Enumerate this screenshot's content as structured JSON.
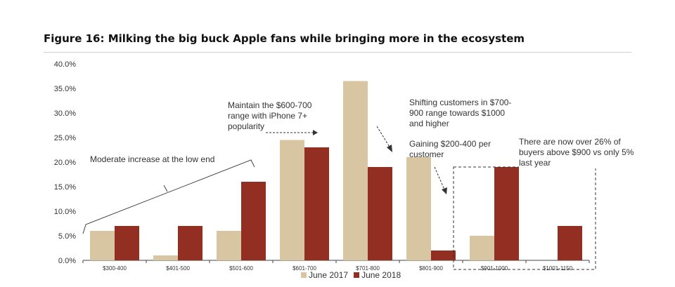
{
  "figure": {
    "title": "Figure 16: Milking the big buck Apple fans while bringing more in the ecosystem"
  },
  "colors": {
    "june2017": "#d7c6a1",
    "june2018": "#922f22"
  },
  "chart_data": {
    "type": "bar",
    "categories": [
      "$300-400",
      "$401-500",
      "$501-600",
      "$601-700",
      "$701-800",
      "$801-900",
      "$901-1000",
      "$1001-1150"
    ],
    "series": [
      {
        "name": "June 2017",
        "values": [
          6.0,
          1.0,
          6.0,
          24.5,
          36.5,
          21.0,
          5.0,
          0.0
        ]
      },
      {
        "name": "June 2018",
        "values": [
          7.0,
          7.0,
          16.0,
          23.0,
          19.0,
          2.0,
          19.0,
          7.0
        ]
      }
    ],
    "ylim": [
      0,
      40
    ],
    "yticks": [
      "0.0%",
      "5.0%",
      "10.0%",
      "15.0%",
      "20.0%",
      "25.0%",
      "30.0%",
      "35.0%",
      "40.0%"
    ],
    "legend_position": "bottom",
    "grid": false,
    "annotations": [
      "Moderate increase at the low end",
      "Maintain the $600-700 range with iPhone 7+ popularity",
      "Shifting customers in $700-900 range towards $1000 and higher",
      "Gaining $200-400 per customer",
      "There are now over 26% of buyers above $900 vs only 5% last year"
    ]
  }
}
